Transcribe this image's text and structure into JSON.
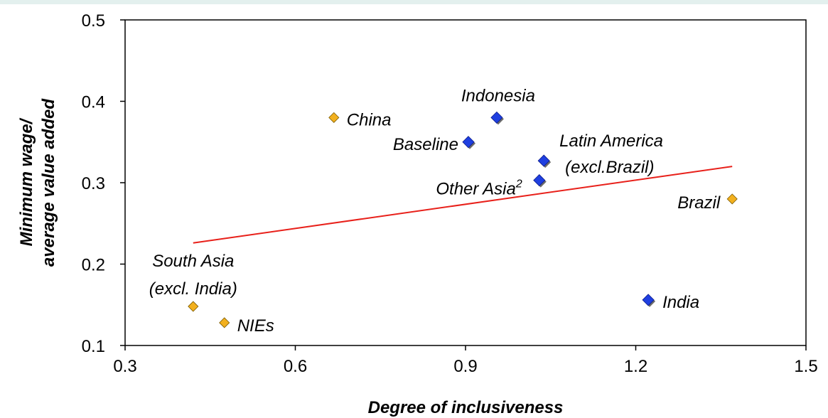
{
  "chart_data": {
    "type": "scatter",
    "title": "",
    "xlabel": "Degree  of inclusiveness",
    "ylabel_lines": [
      "Minimum wage/",
      "average value added"
    ],
    "xlim": [
      0.3,
      1.5
    ],
    "ylim": [
      0.1,
      0.5
    ],
    "x_ticks": [
      0.3,
      0.6,
      0.9,
      1.2,
      1.5
    ],
    "x_tick_labels": [
      "0.3",
      "0.6",
      "0.9",
      "1.2",
      "1.5"
    ],
    "y_ticks": [
      0.1,
      0.2,
      0.3,
      0.4,
      0.5
    ],
    "y_tick_labels": [
      "0.1",
      "0.2",
      "0.3",
      "0.4",
      "0.5"
    ],
    "grid": false,
    "legend": "none",
    "marker_colors": {
      "blue": "#1f3fe0",
      "orange": "#f2b01e"
    },
    "trendline_color": "#e8201a",
    "points": [
      {
        "label": "Baseline",
        "x": 0.905,
        "y": 0.35,
        "color": "blue"
      },
      {
        "label": "Indonesia",
        "x": 0.955,
        "y": 0.38,
        "color": "blue"
      },
      {
        "label": "Latin America",
        "label2": "(excl.Brazil)",
        "x": 1.038,
        "y": 0.327,
        "color": "blue"
      },
      {
        "label": "Other Asia",
        "sup": "2",
        "x": 1.03,
        "y": 0.303,
        "color": "blue"
      },
      {
        "label": "India",
        "x": 1.222,
        "y": 0.156,
        "color": "blue"
      },
      {
        "label": "China",
        "x": 0.668,
        "y": 0.38,
        "color": "orange"
      },
      {
        "label": "Brazil",
        "x": 1.37,
        "y": 0.28,
        "color": "orange"
      },
      {
        "label": "South Asia",
        "label2": "(excl. India)",
        "x": 0.42,
        "y": 0.148,
        "color": "orange"
      },
      {
        "label": "NIEs",
        "x": 0.475,
        "y": 0.128,
        "color": "orange"
      }
    ],
    "trendline": {
      "x": [
        0.42,
        1.37
      ],
      "y": [
        0.226,
        0.32
      ]
    }
  }
}
